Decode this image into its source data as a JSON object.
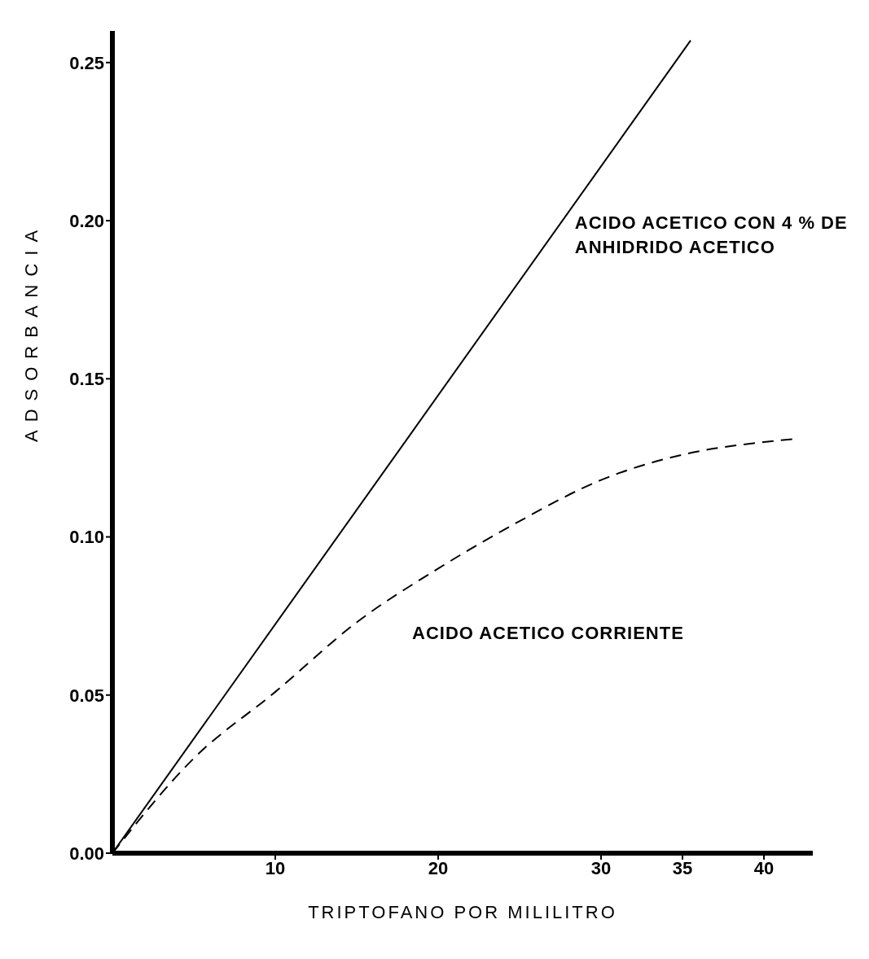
{
  "chart_data": {
    "type": "line",
    "xlabel": "TRIPTOFANO POR MILILITRO",
    "ylabel": "ADSORBANCIA",
    "xlim": [
      0,
      43
    ],
    "xticks": [
      10,
      20,
      30,
      35,
      40
    ],
    "ylim": [
      0,
      0.26
    ],
    "yticks": [
      {
        "value": 0,
        "label": "0.00"
      },
      {
        "value": 0.05,
        "label": "0.05"
      },
      {
        "value": 0.1,
        "label": "0.10"
      },
      {
        "value": 0.15,
        "label": "0.15"
      },
      {
        "value": 0.2,
        "label": "0.20"
      },
      {
        "value": 0.25,
        "label": "0.25"
      }
    ],
    "grid": false,
    "legend": false,
    "marker": "none",
    "series": [
      {
        "name": "ACIDO ACETICO CON 4 % DE ANHIDRIDO ACETICO",
        "color": "#000000",
        "line_style": "solid",
        "x": [
          0,
          35.5
        ],
        "values": [
          0,
          0.257
        ]
      },
      {
        "name": "ACIDO ACETICO CORRIENTE",
        "color": "#000000",
        "line_style": "dashed",
        "x": [
          0,
          5,
          10,
          15,
          20,
          25,
          30,
          35,
          40,
          42
        ],
        "values": [
          0,
          0.03,
          0.051,
          0.073,
          0.09,
          0.105,
          0.118,
          0.126,
          0.13,
          0.131
        ]
      }
    ]
  }
}
